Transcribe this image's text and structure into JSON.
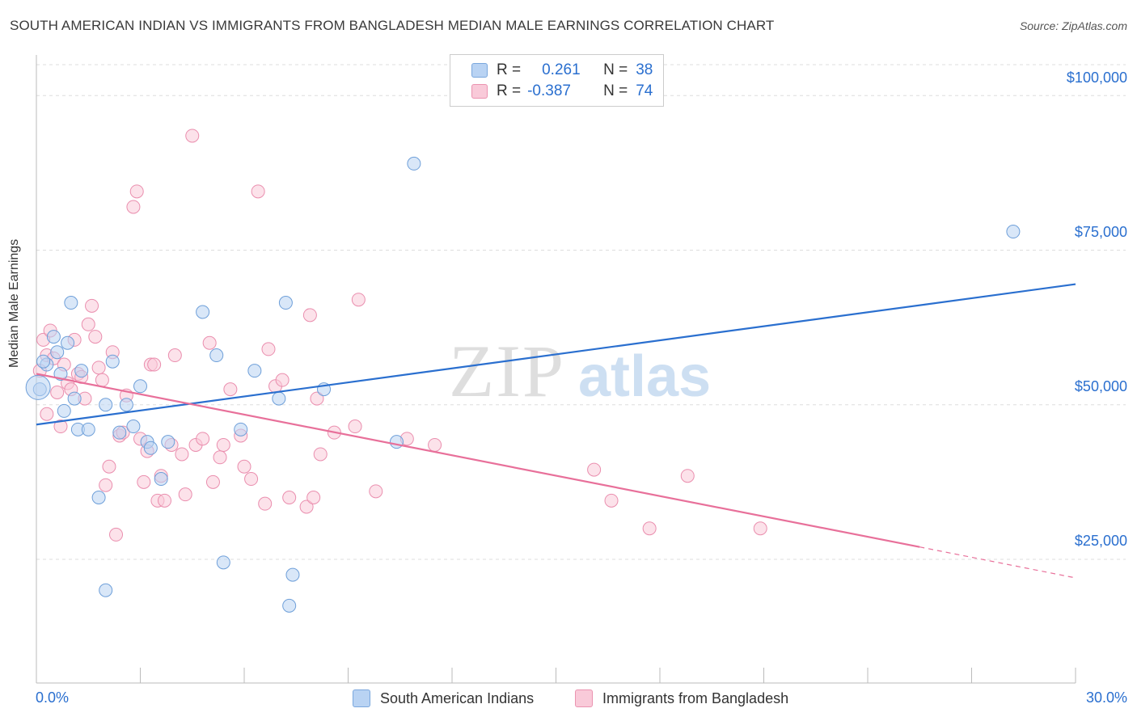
{
  "title": "SOUTH AMERICAN INDIAN VS IMMIGRANTS FROM BANGLADESH MEDIAN MALE EARNINGS CORRELATION CHART",
  "source": "Source: ZipAtlas.com",
  "stats": {
    "row1": {
      "r_label": "R =",
      "r_value": "0.261",
      "n_label": "N =",
      "n_value": "38"
    },
    "row2": {
      "r_label": "R =",
      "r_value": "-0.387",
      "n_label": "N =",
      "n_value": "74"
    }
  },
  "colors": {
    "blue": "#2a6fcf",
    "blue_fill": "#b9d3f3",
    "pink": "#e8709a",
    "pink_fill": "#f9cad9",
    "axis_label": "#2a6fcf"
  },
  "chart_data": {
    "type": "scatter",
    "title": "SOUTH AMERICAN INDIAN VS IMMIGRANTS FROM BANGLADESH MEDIAN MALE EARNINGS CORRELATION CHART",
    "xlabel": "",
    "ylabel": "Median Male Earnings",
    "xlim": [
      0,
      30
    ],
    "ylim": [
      5000,
      105000
    ],
    "x_tick_labels": [
      "0.0%",
      "30.0%"
    ],
    "y_ticks": [
      25000,
      50000,
      75000,
      100000
    ],
    "y_tick_labels": [
      "$25,000",
      "$50,000",
      "$75,000",
      "$100,000"
    ],
    "grid": true,
    "legend_position": "bottom",
    "series": [
      {
        "name": "South American Indians",
        "color": "#2a6fcf",
        "trend": {
          "x": [
            0,
            30
          ],
          "y": [
            46800,
            69500
          ]
        },
        "points": [
          [
            0.1,
            52500
          ],
          [
            0.3,
            56500
          ],
          [
            0.5,
            61000
          ],
          [
            0.6,
            58500
          ],
          [
            0.7,
            55000
          ],
          [
            0.8,
            49000
          ],
          [
            0.9,
            60000
          ],
          [
            1.0,
            66500
          ],
          [
            1.1,
            51000
          ],
          [
            1.2,
            46000
          ],
          [
            1.3,
            55500
          ],
          [
            1.5,
            46000
          ],
          [
            1.8,
            35000
          ],
          [
            2.0,
            50000
          ],
          [
            2.2,
            57000
          ],
          [
            2.4,
            45500
          ],
          [
            2.6,
            50000
          ],
          [
            2.8,
            46500
          ],
          [
            3.0,
            53000
          ],
          [
            3.2,
            44000
          ],
          [
            3.3,
            43000
          ],
          [
            3.6,
            38000
          ],
          [
            3.8,
            44000
          ],
          [
            4.8,
            65000
          ],
          [
            5.2,
            58000
          ],
          [
            5.4,
            24500
          ],
          [
            5.9,
            46000
          ],
          [
            6.3,
            55500
          ],
          [
            7.0,
            51000
          ],
          [
            7.2,
            66500
          ],
          [
            8.3,
            52500
          ],
          [
            10.4,
            44000
          ],
          [
            10.9,
            89000
          ],
          [
            28.2,
            78000
          ],
          [
            2.0,
            20000
          ],
          [
            7.3,
            17500
          ],
          [
            7.4,
            22500
          ],
          [
            0.2,
            57000
          ]
        ]
      },
      {
        "name": "Immigrants from Bangladesh",
        "color": "#e8709a",
        "trend": {
          "x": [
            0,
            25.5
          ],
          "y": [
            55000,
            27000
          ]
        },
        "trend_dashed": {
          "x": [
            25.5,
            30
          ],
          "y": [
            27000,
            22000
          ]
        },
        "points": [
          [
            0.1,
            55500
          ],
          [
            0.2,
            60500
          ],
          [
            0.3,
            58000
          ],
          [
            0.4,
            62000
          ],
          [
            0.5,
            57500
          ],
          [
            0.6,
            52000
          ],
          [
            0.7,
            46500
          ],
          [
            0.8,
            56500
          ],
          [
            0.9,
            53500
          ],
          [
            1.0,
            52500
          ],
          [
            1.1,
            60500
          ],
          [
            1.2,
            55000
          ],
          [
            1.4,
            51000
          ],
          [
            1.5,
            63000
          ],
          [
            1.6,
            66000
          ],
          [
            1.7,
            61000
          ],
          [
            1.8,
            56000
          ],
          [
            1.9,
            54000
          ],
          [
            2.0,
            37000
          ],
          [
            2.1,
            40000
          ],
          [
            2.2,
            58500
          ],
          [
            2.3,
            29000
          ],
          [
            2.4,
            45000
          ],
          [
            2.6,
            51500
          ],
          [
            2.8,
            82000
          ],
          [
            2.9,
            84500
          ],
          [
            3.0,
            44500
          ],
          [
            3.1,
            37500
          ],
          [
            3.3,
            56500
          ],
          [
            3.4,
            56500
          ],
          [
            3.5,
            34500
          ],
          [
            3.6,
            38500
          ],
          [
            3.7,
            34500
          ],
          [
            3.9,
            43500
          ],
          [
            4.0,
            58000
          ],
          [
            4.2,
            42000
          ],
          [
            4.3,
            35500
          ],
          [
            4.5,
            93500
          ],
          [
            4.6,
            43500
          ],
          [
            4.8,
            44500
          ],
          [
            5.0,
            60000
          ],
          [
            5.1,
            37500
          ],
          [
            5.3,
            41500
          ],
          [
            5.4,
            43500
          ],
          [
            5.6,
            52500
          ],
          [
            5.9,
            45000
          ],
          [
            6.0,
            40000
          ],
          [
            6.2,
            38000
          ],
          [
            6.4,
            84500
          ],
          [
            6.6,
            34000
          ],
          [
            6.7,
            59000
          ],
          [
            6.9,
            53000
          ],
          [
            7.1,
            54000
          ],
          [
            7.3,
            35000
          ],
          [
            7.8,
            33500
          ],
          [
            7.9,
            64500
          ],
          [
            8.0,
            35000
          ],
          [
            8.1,
            51000
          ],
          [
            8.2,
            42000
          ],
          [
            8.6,
            45500
          ],
          [
            9.2,
            46500
          ],
          [
            9.3,
            67000
          ],
          [
            9.8,
            36000
          ],
          [
            10.7,
            44500
          ],
          [
            11.5,
            43500
          ],
          [
            16.1,
            39500
          ],
          [
            16.6,
            34500
          ],
          [
            17.7,
            30000
          ],
          [
            18.8,
            38500
          ],
          [
            20.9,
            30000
          ],
          [
            0.3,
            48500
          ],
          [
            1.3,
            54500
          ],
          [
            2.5,
            45500
          ],
          [
            3.2,
            42500
          ]
        ]
      }
    ]
  },
  "legend": {
    "item1": "South American Indians",
    "item2": "Immigrants from Bangladesh"
  },
  "axis": {
    "x_min_label": "0.0%",
    "x_max_label": "30.0%",
    "y_label": "Median Male Earnings",
    "y_tick_100": "$100,000",
    "y_tick_75": "$75,000",
    "y_tick_50": "$50,000",
    "y_tick_25": "$25,000"
  }
}
